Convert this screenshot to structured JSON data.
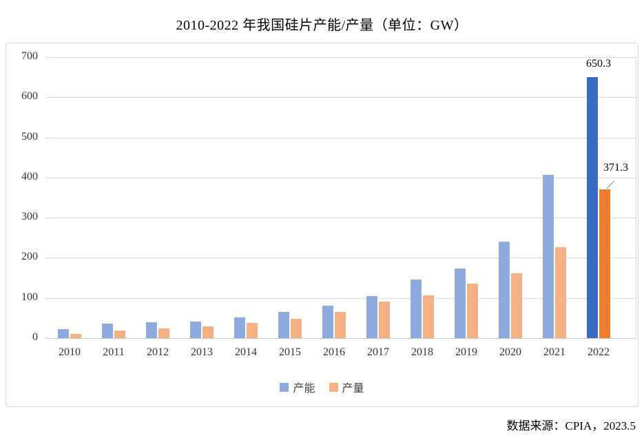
{
  "title": "2010-2022 年我国硅片产能/产量（单位：GW）",
  "source_note": "数据来源：CPIA，2023.5",
  "colors": {
    "capacity": "#8FAADC",
    "production": "#F2B084",
    "capacity_highlight": "#3A6BBF",
    "production_highlight": "#ED7D31",
    "gridline": "#D9D9D9",
    "axis_text": "#333333"
  },
  "chart_data": {
    "type": "bar",
    "title": "2010-2022 年我国硅片产能/产量（单位：GW）",
    "xlabel": "",
    "ylabel": "",
    "unit": "GW",
    "categories": [
      "2010",
      "2011",
      "2012",
      "2013",
      "2014",
      "2015",
      "2016",
      "2017",
      "2018",
      "2019",
      "2020",
      "2021",
      "2022"
    ],
    "series": [
      {
        "key": "capacity",
        "name": "产能",
        "color": "#8FAADC",
        "highlight_color": "#3A6BBF",
        "values": [
          23,
          36,
          40,
          41,
          51,
          65,
          81,
          105,
          146,
          173,
          240,
          407,
          650.3
        ]
      },
      {
        "key": "production",
        "name": "产量",
        "color": "#F2B084",
        "highlight_color": "#ED7D31",
        "values": [
          11,
          19,
          24,
          30,
          38,
          48,
          65,
          91,
          106,
          135,
          162,
          227,
          371.3
        ]
      }
    ],
    "ylim": [
      0,
      700
    ],
    "yticks": [
      0,
      100,
      200,
      300,
      400,
      500,
      600,
      700
    ],
    "grid": true,
    "legend_position": "bottom",
    "highlight_category": "2022",
    "annotations": [
      {
        "text": "650.3",
        "category": "2022",
        "series": "产能",
        "leader_line": false
      },
      {
        "text": "371.3",
        "category": "2022",
        "series": "产量",
        "leader_line": true
      }
    ]
  }
}
